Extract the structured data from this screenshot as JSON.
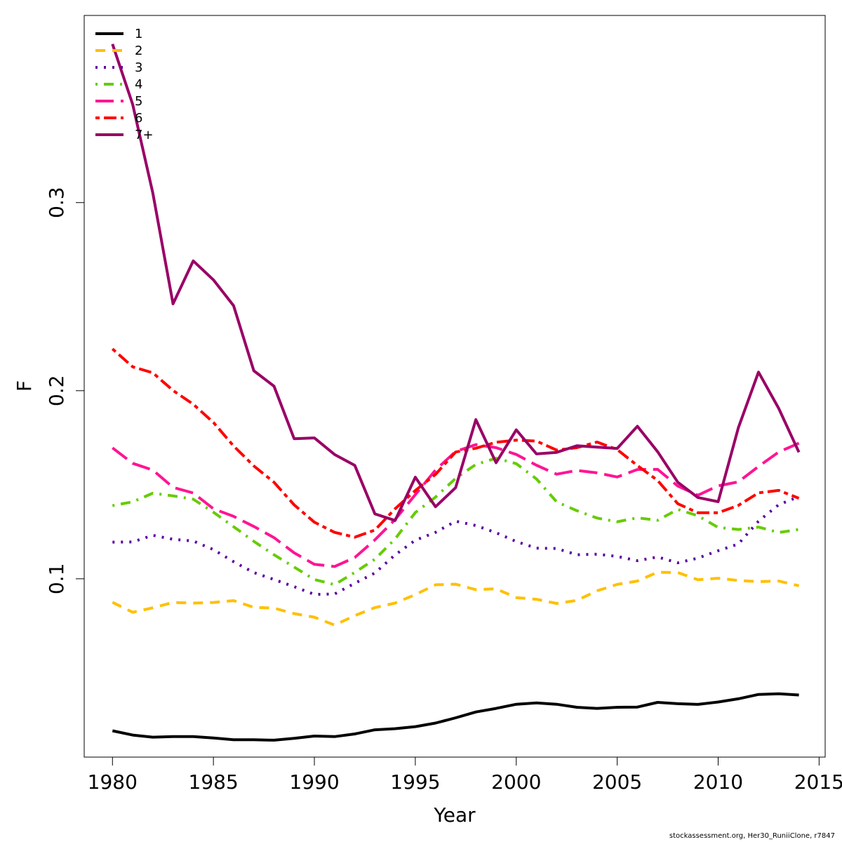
{
  "chart_data": {
    "type": "line",
    "title": "",
    "xlabel": "Year",
    "ylabel": "F",
    "xlim": [
      1978.6,
      2015.3
    ],
    "ylim": [
      0.0052,
      0.3995
    ],
    "x_ticks": [
      1980,
      1985,
      1990,
      1995,
      2000,
      2005,
      2010,
      2015
    ],
    "y_ticks": [
      0.1,
      0.2,
      0.3
    ],
    "legend_position": "top-left",
    "grid": false,
    "x": [
      1980,
      1981,
      1982,
      1983,
      1984,
      1985,
      1986,
      1987,
      1988,
      1989,
      1990,
      1991,
      1992,
      1993,
      1994,
      1995,
      1996,
      1997,
      1998,
      1999,
      2000,
      2001,
      2002,
      2003,
      2004,
      2005,
      2006,
      2007,
      2008,
      2009,
      2010,
      2011,
      2012,
      2013,
      2014
    ],
    "series": [
      {
        "name": "1",
        "color": "#000000",
        "dash": "solid",
        "values": [
          0.0192,
          0.0169,
          0.0158,
          0.0161,
          0.0161,
          0.0154,
          0.0144,
          0.0144,
          0.0142,
          0.0152,
          0.0164,
          0.0161,
          0.0175,
          0.0197,
          0.0203,
          0.0214,
          0.0233,
          0.0261,
          0.0292,
          0.0311,
          0.0333,
          0.034,
          0.0333,
          0.0317,
          0.0311,
          0.0317,
          0.0318,
          0.0343,
          0.0336,
          0.0332,
          0.0345,
          0.0362,
          0.0385,
          0.0389,
          0.0382
        ]
      },
      {
        "name": "2",
        "color": "#FFC000",
        "dash": "dashed",
        "values": [
          0.0875,
          0.0822,
          0.0846,
          0.0874,
          0.0871,
          0.0874,
          0.0884,
          0.0848,
          0.0844,
          0.0815,
          0.0796,
          0.0754,
          0.0804,
          0.0847,
          0.0871,
          0.0916,
          0.0968,
          0.0971,
          0.0942,
          0.0947,
          0.09,
          0.0891,
          0.0869,
          0.0885,
          0.0936,
          0.097,
          0.0988,
          0.1035,
          0.1033,
          0.0995,
          0.1003,
          0.0991,
          0.0985,
          0.0988,
          0.0963
        ]
      },
      {
        "name": "3",
        "color": "#5B00A0",
        "dash": "dotted",
        "values": [
          0.1195,
          0.1196,
          0.1231,
          0.121,
          0.1201,
          0.1155,
          0.1091,
          0.1033,
          0.0996,
          0.0958,
          0.0917,
          0.0919,
          0.0976,
          0.1031,
          0.1127,
          0.1205,
          0.1247,
          0.1306,
          0.1283,
          0.1245,
          0.1198,
          0.1163,
          0.1161,
          0.1128,
          0.1131,
          0.1119,
          0.1096,
          0.1116,
          0.1085,
          0.111,
          0.1149,
          0.1185,
          0.1306,
          0.1394,
          0.1437
        ]
      },
      {
        "name": "4",
        "color": "#66CC00",
        "dash": "dashdot",
        "values": [
          0.1389,
          0.1409,
          0.1455,
          0.1441,
          0.1423,
          0.1354,
          0.1277,
          0.1199,
          0.1128,
          0.1062,
          0.0996,
          0.0969,
          0.1034,
          0.1104,
          0.1212,
          0.1352,
          0.1434,
          0.1534,
          0.1608,
          0.1641,
          0.1612,
          0.1531,
          0.1409,
          0.1362,
          0.1323,
          0.1303,
          0.1324,
          0.1311,
          0.1369,
          0.1335,
          0.1273,
          0.1262,
          0.1275,
          0.1246,
          0.1262
        ]
      },
      {
        "name": "5",
        "color": "#FF1493",
        "dash": "longdash",
        "values": [
          0.1696,
          0.1614,
          0.1578,
          0.1486,
          0.1456,
          0.1372,
          0.1332,
          0.1278,
          0.1219,
          0.1138,
          0.1077,
          0.1065,
          0.1113,
          0.1207,
          0.1315,
          0.1447,
          0.1578,
          0.1677,
          0.1713,
          0.1697,
          0.1661,
          0.1604,
          0.1556,
          0.1576,
          0.1563,
          0.1541,
          0.1581,
          0.1582,
          0.1493,
          0.1444,
          0.1494,
          0.1515,
          0.1597,
          0.1674,
          0.1721
        ]
      },
      {
        "name": "6",
        "color": "#FF0000",
        "dash": "twodash",
        "values": [
          0.2222,
          0.2127,
          0.2095,
          0.2001,
          0.1928,
          0.1831,
          0.1706,
          0.16,
          0.1513,
          0.1393,
          0.1301,
          0.1247,
          0.1221,
          0.1259,
          0.1372,
          0.1469,
          0.1555,
          0.1674,
          0.1694,
          0.1726,
          0.1737,
          0.1732,
          0.1684,
          0.1697,
          0.1727,
          0.1687,
          0.1602,
          0.1523,
          0.1399,
          0.1351,
          0.1351,
          0.139,
          0.1457,
          0.147,
          0.1428
        ]
      },
      {
        "name": "7+",
        "color": "#990066",
        "dash": "solid",
        "values": [
          0.3843,
          0.3522,
          0.3051,
          0.2462,
          0.269,
          0.2589,
          0.2452,
          0.2106,
          0.2024,
          0.1745,
          0.1749,
          0.1661,
          0.1603,
          0.1345,
          0.131,
          0.154,
          0.1383,
          0.1485,
          0.1846,
          0.1617,
          0.1792,
          0.1664,
          0.1672,
          0.1707,
          0.17,
          0.1693,
          0.1811,
          0.1676,
          0.1513,
          0.1432,
          0.141,
          0.1803,
          0.2099,
          0.1906,
          0.1673
        ]
      }
    ]
  },
  "footer_text": "stockassessment.org, Her30_RuniiClone, r7847"
}
